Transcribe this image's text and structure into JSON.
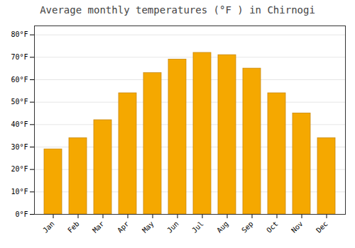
{
  "chart_data": {
    "type": "bar",
    "title": "Average monthly temperatures (°F ) in Chirnogi",
    "categories": [
      "Jan",
      "Feb",
      "Mar",
      "Apr",
      "May",
      "Jun",
      "Jul",
      "Aug",
      "Sep",
      "Oct",
      "Nov",
      "Dec"
    ],
    "values": [
      29,
      34,
      42,
      54,
      63,
      69,
      72,
      71,
      65,
      54,
      45,
      34
    ],
    "color": "#F5A800",
    "ylim": [
      0,
      84
    ],
    "yticks": [
      {
        "value": 0,
        "label": "0°F"
      },
      {
        "value": 10,
        "label": "10°F"
      },
      {
        "value": 20,
        "label": "20°F"
      },
      {
        "value": 30,
        "label": "30°F"
      },
      {
        "value": 40,
        "label": "40°F"
      },
      {
        "value": 50,
        "label": "50°F"
      },
      {
        "value": 60,
        "label": "60°F"
      },
      {
        "value": 70,
        "label": "70°F"
      },
      {
        "value": 80,
        "label": "80°F"
      }
    ],
    "grid": true
  }
}
